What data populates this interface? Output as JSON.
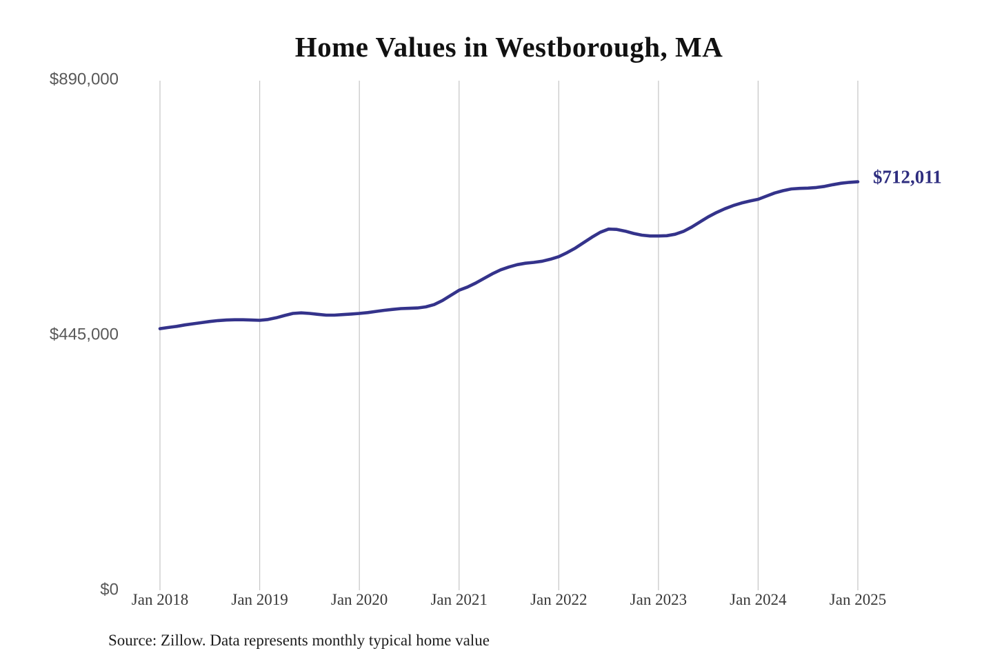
{
  "title": "Home Values in Westborough, MA",
  "source_note": "Source: Zillow. Data represents monthly typical home value",
  "colors": {
    "background": "#ffffff",
    "line": "#34338b",
    "final_label": "#2e2d7f",
    "gridline": "#c8c8c8",
    "title_text": "#111111",
    "y_tick_text": "#595959",
    "x_tick_text": "#383838",
    "source_text": "#1c1c1c"
  },
  "chart_data": {
    "type": "line",
    "title": "Home Values in Westborough, MA",
    "xlabel": "",
    "ylabel": "",
    "x_tick_labels": [
      "Jan 2018",
      "Jan 2019",
      "Jan 2020",
      "Jan 2021",
      "Jan 2022",
      "Jan 2023",
      "Jan 2024",
      "Jan 2025"
    ],
    "y_ticks": [
      {
        "label": "$0",
        "value": 0
      },
      {
        "label": "$445,000",
        "value": 445000
      },
      {
        "label": "$890,000",
        "value": 890000
      }
    ],
    "ylim": [
      0,
      890000
    ],
    "grid": "vertical-only",
    "legend": "none",
    "final_value": 712011,
    "final_value_label": "$712,011",
    "series": [
      {
        "name": "Monthly typical home value",
        "start": "Jan 2018",
        "end": "Jan 2025",
        "interval": "monthly",
        "values": [
          456000,
          458000,
          460000,
          462500,
          464500,
          466500,
          468500,
          470000,
          471000,
          471500,
          471500,
          471000,
          470500,
          472000,
          475000,
          479000,
          482500,
          483500,
          482500,
          481000,
          479500,
          479500,
          480500,
          481500,
          482500,
          484000,
          486000,
          488000,
          489500,
          491000,
          491500,
          492000,
          494000,
          498000,
          505000,
          514000,
          523000,
          528500,
          535500,
          543500,
          551500,
          558500,
          563500,
          567500,
          570000,
          571500,
          573500,
          577000,
          581500,
          588500,
          596500,
          606000,
          615500,
          624000,
          629500,
          629000,
          626000,
          622000,
          619000,
          617500,
          617500,
          618000,
          620500,
          625500,
          633000,
          642000,
          651000,
          658500,
          665000,
          670500,
          675000,
          678500,
          681500,
          687000,
          692500,
          696500,
          699500,
          700500,
          701000,
          702000,
          704000,
          707000,
          709500,
          711000,
          712011
        ]
      }
    ]
  }
}
